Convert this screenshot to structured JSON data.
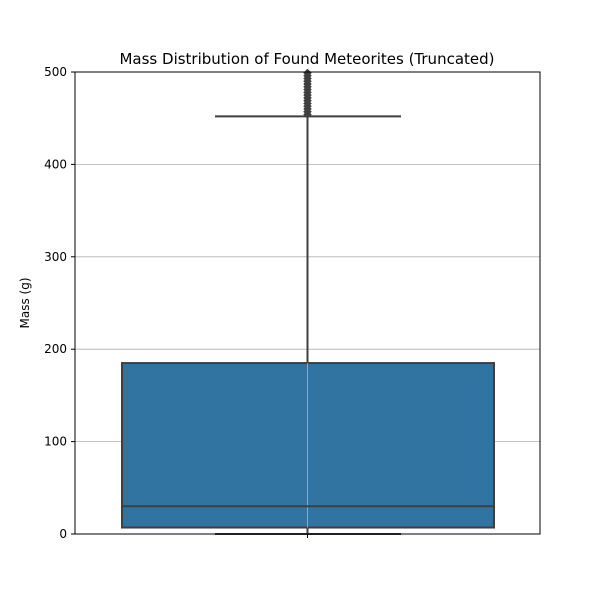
{
  "chart_data": {
    "type": "box",
    "title": "Mass Distribution of Found Meteorites (Truncated)",
    "xlabel": "",
    "ylabel": "Mass (g)",
    "ylim": [
      0,
      500
    ],
    "yticks": [
      0,
      100,
      200,
      300,
      400,
      500
    ],
    "grid": true,
    "box": {
      "whisker_low": 0,
      "q1": 7,
      "median": 30,
      "q3": 185,
      "whisker_high": 452,
      "outliers": [
        454,
        457,
        460,
        463,
        466,
        469,
        472,
        475,
        478,
        481,
        484,
        487,
        490,
        493,
        496,
        499
      ]
    },
    "colors": {
      "box_fill": "#3274a1",
      "box_edge": "#3f3f3f",
      "grid": "#b0b0b0"
    }
  }
}
